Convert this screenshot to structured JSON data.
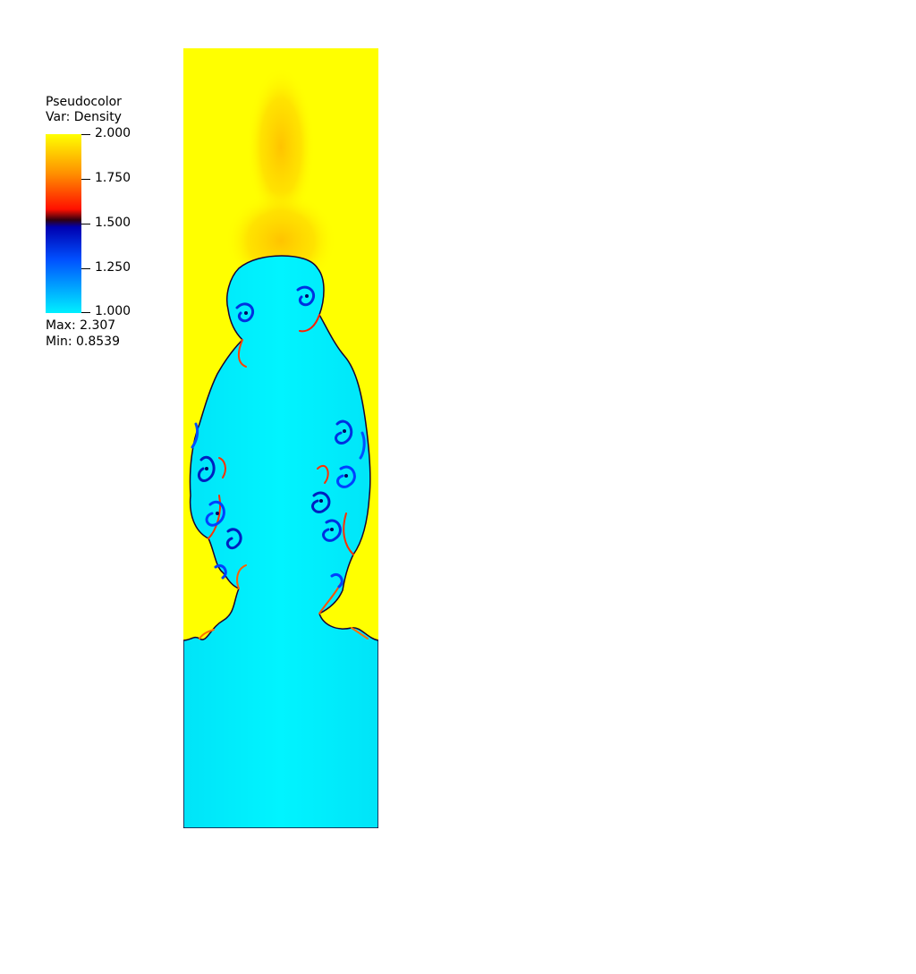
{
  "legend": {
    "title_line1": "Pseudocolor",
    "title_line2": "Var: Density",
    "max_label": "Max:  2.307",
    "min_label": "Min:  0.8539"
  },
  "colors": {
    "high": "#ffff00",
    "orange": "#ff8000",
    "red": "#ff1000",
    "mid_dark": "#100018",
    "dark_blue": "#0000c0",
    "blue": "#0050ff",
    "low": "#00f0ff"
  },
  "chart_data": {
    "type": "heatmap",
    "title": "Pseudocolor",
    "variable": "Density",
    "colorbar": {
      "range": [
        1.0,
        2.0
      ],
      "ticks": [
        2.0,
        1.75,
        1.5,
        1.25,
        1.0
      ],
      "tick_labels": [
        "2.000",
        "1.750",
        "1.500",
        "1.250",
        "1.000"
      ]
    },
    "data_max": 2.307,
    "data_min": 0.8539,
    "description_values": {
      "upper_fluid_density": 2.0,
      "lower_fluid_density": 1.0
    }
  }
}
